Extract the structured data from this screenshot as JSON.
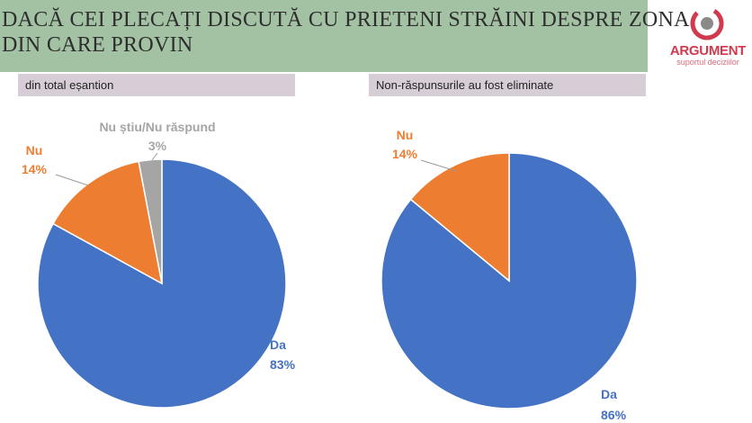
{
  "title": {
    "line1": "DACĂ CEI PLECAȚI DISCUTĂ CU PRIETENI STRĂINI DESPRE ZONA",
    "line2": "DIN CARE PROVIN"
  },
  "logo": {
    "word": "ARGUMENT",
    "tagline": "suportul deciziilor"
  },
  "colors": {
    "da": "#4472c4",
    "nu": "#ed7d31",
    "ns": "#a5a5a5",
    "banner": "#a3c2a3",
    "subheader": "#d7cdd6",
    "brand": "#d13a4e"
  },
  "chart_data": [
    {
      "type": "pie",
      "title": "din total eșantion",
      "slices": [
        {
          "label": "Da",
          "value": 83,
          "value_label": "83%",
          "color": "#4472c4"
        },
        {
          "label": "Nu",
          "value": 14,
          "value_label": "14%",
          "color": "#ed7d31"
        },
        {
          "label": "Nu știu/Nu răspund",
          "value": 3,
          "value_label": "3%",
          "color": "#a5a5a5"
        }
      ]
    },
    {
      "type": "pie",
      "title": "Non-răspunsurile au fost eliminate",
      "slices": [
        {
          "label": "Da",
          "value": 86,
          "value_label": "86%",
          "color": "#4472c4"
        },
        {
          "label": "Nu",
          "value": 14,
          "value_label": "14%",
          "color": "#ed7d31"
        }
      ]
    }
  ]
}
